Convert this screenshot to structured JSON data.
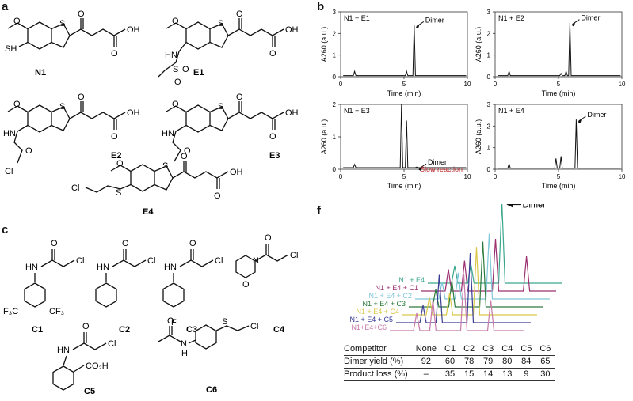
{
  "panels": {
    "a": "a",
    "b": "b",
    "c": "c",
    "f": "f"
  },
  "compounds_a": [
    {
      "id": "N1",
      "label": "N1",
      "substituent": "SH"
    },
    {
      "id": "E1",
      "label": "E1",
      "substituent_atoms": [
        "HN",
        "S",
        "O",
        "O"
      ]
    },
    {
      "id": "E2",
      "label": "E2",
      "substituent_atoms": [
        "HN",
        "O",
        "Cl"
      ]
    },
    {
      "id": "E3",
      "label": "E3",
      "substituent_atoms": [
        "HN",
        "O"
      ]
    },
    {
      "id": "E4",
      "label": "E4",
      "substituent_atoms": [
        "Cl",
        "S"
      ]
    }
  ],
  "core_atoms": {
    "s": "S",
    "oh": "OH",
    "o_keto": "O",
    "o_acid": "O",
    "o_methoxy": "O"
  },
  "compounds_c": [
    {
      "id": "C1",
      "label": "C1",
      "atoms": [
        "HN",
        "O",
        "Cl",
        "F₃C",
        "CF₃"
      ]
    },
    {
      "id": "C2",
      "label": "C2",
      "atoms": [
        "HN",
        "O",
        "Cl"
      ]
    },
    {
      "id": "C3",
      "label": "C3",
      "atoms": [
        "HN",
        "O",
        "Cl",
        "F"
      ]
    },
    {
      "id": "C4",
      "label": "C4",
      "atoms": [
        "N",
        "O",
        "O",
        "Cl"
      ]
    },
    {
      "id": "C5",
      "label": "C5",
      "atoms": [
        "HN",
        "O",
        "Cl",
        "CO₂H"
      ]
    },
    {
      "id": "C6",
      "label": "C6",
      "atoms": [
        "O",
        "N",
        "H",
        "S",
        "Cl"
      ]
    }
  ],
  "chart_data": [
    {
      "type": "line",
      "panel": "b",
      "title": "N1 + E1",
      "xlabel": "Time (min)",
      "ylabel": "A260 (a.u.)",
      "xlim": [
        0,
        10
      ],
      "ylim": [
        0,
        3
      ],
      "xticks": [
        "0",
        "5",
        "10"
      ],
      "yticks": [
        "0",
        "1",
        "2",
        "3"
      ],
      "peaks": [
        {
          "x": 1.1,
          "y": 0.25
        },
        {
          "x": 5.2,
          "y": 0.25
        },
        {
          "x": 5.8,
          "y": 2.4
        }
      ],
      "annotations": [
        {
          "text": "Dimer",
          "x": 5.8
        }
      ]
    },
    {
      "type": "line",
      "panel": "b",
      "title": "N1 + E2",
      "xlabel": "Time (min)",
      "ylabel": "A260 (a.u.)",
      "xlim": [
        0,
        10
      ],
      "ylim": [
        0,
        3
      ],
      "xticks": [
        "0",
        "5",
        "10"
      ],
      "yticks": [
        "0",
        "1",
        "2",
        "3"
      ],
      "peaks": [
        {
          "x": 1.1,
          "y": 0.25
        },
        {
          "x": 5.2,
          "y": 0.15
        },
        {
          "x": 5.6,
          "y": 0.25
        },
        {
          "x": 5.9,
          "y": 2.5
        }
      ],
      "annotations": [
        {
          "text": "Dimer",
          "x": 5.9
        }
      ]
    },
    {
      "type": "line",
      "panel": "b",
      "title": "N1 + E3",
      "xlabel": "Time (min)",
      "ylabel": "A260 (a.u.)",
      "xlim": [
        0,
        10
      ],
      "ylim": [
        0,
        2
      ],
      "xticks": [
        "0",
        "5",
        "10"
      ],
      "yticks": [
        "0",
        "1",
        "2"
      ],
      "peaks": [
        {
          "x": 1.1,
          "y": 0.15
        },
        {
          "x": 4.8,
          "y": 2.0
        },
        {
          "x": 5.2,
          "y": 1.5
        },
        {
          "x": 6.0,
          "y": 0.07
        }
      ],
      "annotations": [
        {
          "text": "Dimer",
          "x": 6.0
        },
        {
          "text": "Slow reaction",
          "x": 6.0,
          "color": "#c0282d"
        }
      ]
    },
    {
      "type": "line",
      "panel": "b",
      "title": "N1 + E4",
      "xlabel": "Time (min)",
      "ylabel": "A260 (a.u.)",
      "xlim": [
        0,
        10
      ],
      "ylim": [
        0,
        3
      ],
      "xticks": [
        "0",
        "5",
        "10"
      ],
      "yticks": [
        "0",
        "1",
        "2",
        "3"
      ],
      "peaks": [
        {
          "x": 1.1,
          "y": 0.25
        },
        {
          "x": 4.8,
          "y": 0.5
        },
        {
          "x": 5.2,
          "y": 0.6
        },
        {
          "x": 6.4,
          "y": 2.3
        }
      ],
      "annotations": [
        {
          "text": "Dimer",
          "x": 6.4
        }
      ]
    },
    {
      "type": "line",
      "panel": "f",
      "annotation": "Dimer",
      "series": [
        {
          "name": "N1 + E4",
          "color": "#3aa68c",
          "peaks": [
            {
              "x": 0.2,
              "h": 0.2
            },
            {
              "x": 0.32,
              "h": 0.22
            },
            {
              "x": 0.55,
              "h": 0.95
            }
          ]
        },
        {
          "name": "N1 + E4 + C1",
          "color": "#9b3070",
          "peaks": [
            {
              "x": 0.2,
              "h": 0.25
            },
            {
              "x": 0.32,
              "h": 0.35
            },
            {
              "x": 0.55,
              "h": 0.6
            },
            {
              "x": 0.78,
              "h": 0.4
            }
          ]
        },
        {
          "name": "N1 + E4 + C2",
          "color": "#7fc6d8",
          "peaks": [
            {
              "x": 0.2,
              "h": 0.2
            },
            {
              "x": 0.32,
              "h": 0.3
            },
            {
              "x": 0.55,
              "h": 0.75
            }
          ]
        },
        {
          "name": "N1 + E4 + C3",
          "color": "#2c7a3d",
          "peaks": [
            {
              "x": 0.2,
              "h": 0.2
            },
            {
              "x": 0.32,
              "h": 0.3
            },
            {
              "x": 0.55,
              "h": 0.75
            }
          ]
        },
        {
          "name": "N1 + E4 + C4",
          "color": "#d9c84a",
          "peaks": [
            {
              "x": 0.2,
              "h": 0.2
            },
            {
              "x": 0.35,
              "h": 0.25
            },
            {
              "x": 0.55,
              "h": 0.78
            }
          ]
        },
        {
          "name": "N1 + E4 + C5",
          "color": "#3a3d94",
          "peaks": [
            {
              "x": 0.2,
              "h": 0.2
            },
            {
              "x": 0.32,
              "h": 0.55
            },
            {
              "x": 0.55,
              "h": 0.8
            }
          ]
        },
        {
          "name": "N1+E4+C6",
          "color": "#c77aa8",
          "peaks": [
            {
              "x": 0.2,
              "h": 0.2
            },
            {
              "x": 0.32,
              "h": 0.35
            },
            {
              "x": 0.55,
              "h": 0.65
            },
            {
              "x": 0.75,
              "h": 0.35
            }
          ]
        }
      ]
    },
    {
      "type": "table",
      "panel": "f",
      "header": [
        "Competitor",
        "None",
        "C1",
        "C2",
        "C3",
        "C4",
        "C5",
        "C6"
      ],
      "rows": [
        [
          "Dimer yield (%)",
          "92",
          "60",
          "78",
          "79",
          "80",
          "84",
          "65"
        ],
        [
          "Product loss (%)",
          "–",
          "35",
          "15",
          "14",
          "13",
          "9",
          "30"
        ]
      ]
    }
  ]
}
